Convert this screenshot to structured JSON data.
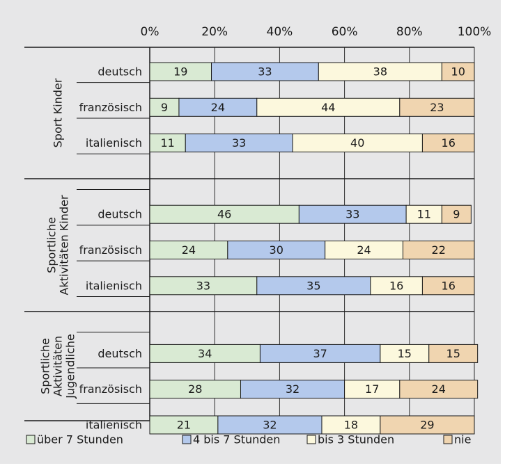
{
  "chart_data": {
    "type": "bar",
    "stacked": true,
    "orientation": "horizontal",
    "percent": true,
    "xlim": [
      0,
      100
    ],
    "xticks": [
      "0%",
      "20%",
      "40%",
      "60%",
      "80%",
      "100%"
    ],
    "grid": true,
    "legend_position": "bottom",
    "groups": [
      {
        "label": "Sport Kinder",
        "categories": [
          "deutsch",
          "französisch",
          "italienisch"
        ]
      },
      {
        "label": "Sportliche Aktivitäten Kinder",
        "label_lines": [
          "Sportliche",
          "Aktivitäten Kinder"
        ],
        "categories": [
          "deutsch",
          "französisch",
          "italienisch"
        ]
      },
      {
        "label": "Sportliche Aktivitäten Jugendliche",
        "label_lines": [
          "Sportliche",
          "Aktivitäten",
          "Jugendliche"
        ],
        "categories": [
          "deutsch",
          "französisch",
          "italienisch"
        ]
      }
    ],
    "series": [
      {
        "name": "über 7 Stunden",
        "color": "#d9ead3",
        "values": [
          19,
          9,
          11,
          46,
          24,
          33,
          34,
          28,
          21
        ]
      },
      {
        "name": "4 bis 7 Stunden",
        "color": "#b4c9ec",
        "values": [
          33,
          24,
          33,
          33,
          30,
          35,
          37,
          32,
          32
        ]
      },
      {
        "name": "bis 3 Stunden",
        "color": "#fcf8dd",
        "values": [
          38,
          44,
          40,
          11,
          24,
          16,
          15,
          17,
          18
        ]
      },
      {
        "name": "nie",
        "color": "#f0d5b0",
        "values": [
          10,
          23,
          16,
          9,
          22,
          16,
          15,
          24,
          29
        ]
      }
    ]
  }
}
